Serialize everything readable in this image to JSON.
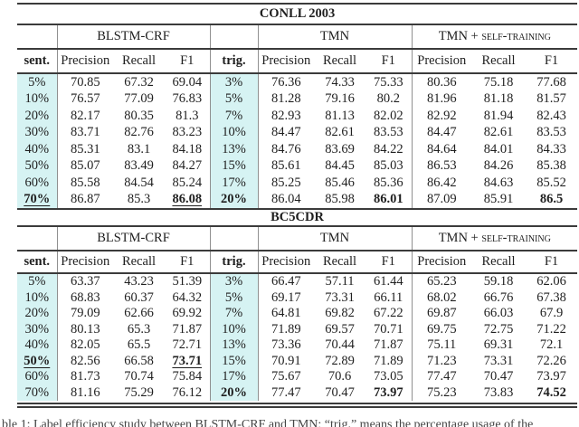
{
  "colors": {
    "highlight_cyan": "#d6f3f3",
    "rule_dark": "#3b3b3b",
    "vertical_rule_gray": "#909090",
    "text": "#1f1f1f"
  },
  "tables": [
    {
      "title": "CONLL 2003",
      "group_headers": [
        {
          "label": "",
          "span": 1
        },
        {
          "label": "BLSTM-CRF",
          "span": 3
        },
        {
          "label": "",
          "span": 1
        },
        {
          "label": "TMN",
          "span": 3
        },
        {
          "label": "TMN + self-training",
          "span": 3
        }
      ],
      "column_headers": [
        "sent.",
        "Precision",
        "Recall",
        "F1",
        "trig.",
        "Precision",
        "Recall",
        "F1",
        "Precision",
        "Recall",
        "F1"
      ],
      "rows": [
        {
          "cells": [
            "5%",
            "70.85",
            "67.32",
            "69.04",
            "3%",
            "76.36",
            "74.33",
            "75.33",
            "80.36",
            "75.18",
            "77.68"
          ],
          "bold": [],
          "underline": []
        },
        {
          "cells": [
            "10%",
            "76.57",
            "77.09",
            "76.83",
            "5%",
            "81.28",
            "79.16",
            "80.2",
            "81.96",
            "81.18",
            "81.57"
          ],
          "bold": [],
          "underline": []
        },
        {
          "cells": [
            "20%",
            "82.17",
            "80.35",
            "81.3",
            "7%",
            "82.93",
            "81.13",
            "82.02",
            "82.92",
            "81.94",
            "82.43"
          ],
          "bold": [],
          "underline": []
        },
        {
          "cells": [
            "30%",
            "83.71",
            "82.76",
            "83.23",
            "10%",
            "84.47",
            "82.61",
            "83.53",
            "84.47",
            "82.61",
            "83.53"
          ],
          "bold": [],
          "underline": []
        },
        {
          "cells": [
            "40%",
            "85.31",
            "83.1",
            "84.18",
            "13%",
            "84.76",
            "83.69",
            "84.22",
            "84.64",
            "84.01",
            "84.33"
          ],
          "bold": [],
          "underline": []
        },
        {
          "cells": [
            "50%",
            "85.07",
            "83.49",
            "84.27",
            "15%",
            "85.61",
            "84.45",
            "85.03",
            "86.53",
            "84.26",
            "85.38"
          ],
          "bold": [],
          "underline": []
        },
        {
          "cells": [
            "60%",
            "85.58",
            "84.54",
            "85.24",
            "17%",
            "85.25",
            "85.46",
            "85.36",
            "86.42",
            "84.63",
            "85.52"
          ],
          "bold": [],
          "underline": []
        },
        {
          "cells": [
            "70%",
            "86.87",
            "85.3",
            "86.08",
            "20%",
            "86.04",
            "85.98",
            "86.01",
            "87.09",
            "85.91",
            "86.5"
          ],
          "bold": [
            0,
            3,
            4,
            7,
            10
          ],
          "underline": [
            0,
            3
          ]
        }
      ]
    },
    {
      "title": "BC5CDR",
      "group_headers": [
        {
          "label": "",
          "span": 1
        },
        {
          "label": "BLSTM-CRF",
          "span": 3
        },
        {
          "label": "",
          "span": 1
        },
        {
          "label": "TMN",
          "span": 3
        },
        {
          "label": "TMN + self-training",
          "span": 3
        }
      ],
      "column_headers": [
        "sent.",
        "Precision",
        "Recall",
        "F1",
        "trig.",
        "Precision",
        "Recall",
        "F1",
        "Precision",
        "Recall",
        "F1"
      ],
      "rows": [
        {
          "cells": [
            "5%",
            "63.37",
            "43.23",
            "51.39",
            "3%",
            "66.47",
            "57.11",
            "61.44",
            "65.23",
            "59.18",
            "62.06"
          ],
          "bold": [],
          "underline": []
        },
        {
          "cells": [
            "10%",
            "68.83",
            "60.37",
            "64.32",
            "5%",
            "69.17",
            "73.31",
            "66.11",
            "68.02",
            "66.76",
            "67.38"
          ],
          "bold": [],
          "underline": []
        },
        {
          "cells": [
            "20%",
            "79.09",
            "62.66",
            "69.92",
            "7%",
            "64.81",
            "69.82",
            "67.22",
            "69.87",
            "66.03",
            "67.9"
          ],
          "bold": [],
          "underline": []
        },
        {
          "cells": [
            "30%",
            "80.13",
            "65.3",
            "71.87",
            "10%",
            "71.89",
            "69.57",
            "70.71",
            "69.75",
            "72.75",
            "71.22"
          ],
          "bold": [],
          "underline": []
        },
        {
          "cells": [
            "40%",
            "82.05",
            "65.5",
            "72.71",
            "13%",
            "73.36",
            "70.44",
            "71.87",
            "75.11",
            "69.31",
            "72.1"
          ],
          "bold": [],
          "underline": []
        },
        {
          "cells": [
            "50%",
            "82.56",
            "66.58",
            "73.71",
            "15%",
            "70.91",
            "72.89",
            "71.89",
            "71.23",
            "73.31",
            "72.26"
          ],
          "bold": [
            0,
            3
          ],
          "underline": [
            0,
            3
          ]
        },
        {
          "cells": [
            "60%",
            "81.73",
            "70.74",
            "75.84",
            "17%",
            "75.67",
            "70.6",
            "73.05",
            "77.47",
            "70.47",
            "73.97"
          ],
          "bold": [],
          "underline": []
        },
        {
          "cells": [
            "70%",
            "81.16",
            "75.29",
            "76.12",
            "20%",
            "77.47",
            "70.47",
            "73.97",
            "75.23",
            "73.83",
            "74.52"
          ],
          "bold": [
            4,
            7,
            10
          ],
          "underline": []
        }
      ]
    }
  ],
  "caption": {
    "text": "ble 1: Label efficiency study between BLSTM-CRF and TMN; “trig.” means the percentage usage of the"
  }
}
